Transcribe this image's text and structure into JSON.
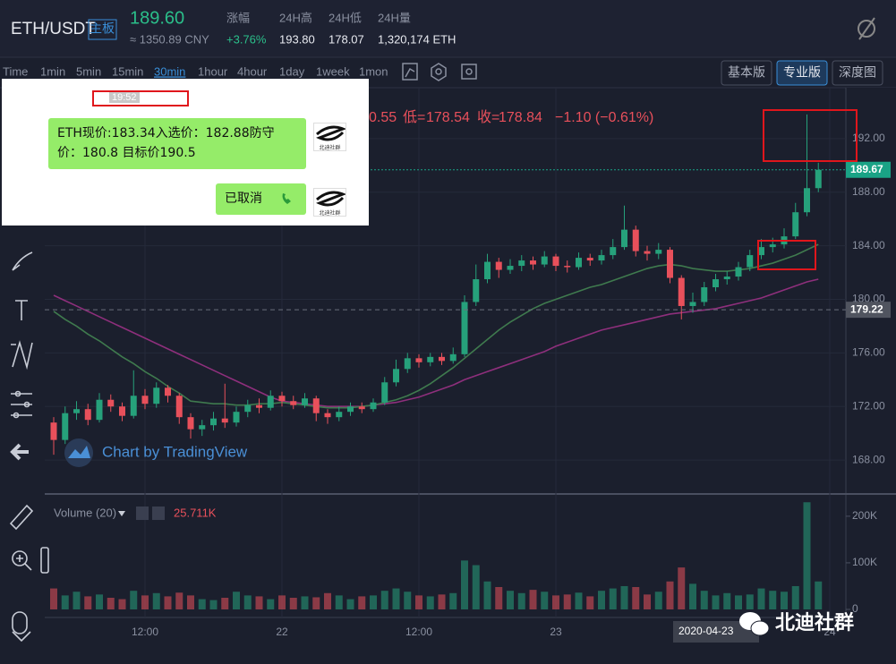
{
  "header": {
    "pair": "ETH/USDT",
    "board": "主板",
    "price": "189.60",
    "price_cny": "≈ 1350.89 CNY",
    "change_label": "涨幅",
    "change": "+3.76%",
    "high_label": "24H高",
    "high": "193.80",
    "low_label": "24H低",
    "low": "178.07",
    "volume_label": "24H量",
    "volume": "1,320,174 ETH"
  },
  "toolbar": {
    "intervals": [
      "Time",
      "1min",
      "5min",
      "15min",
      "30min",
      "1hour",
      "4hour",
      "1day",
      "1week",
      "1mon"
    ],
    "active": 4,
    "views": [
      "基本版",
      "专业版",
      "深度图"
    ],
    "active_view": 1
  },
  "legend_row": {
    "open_tail": "0.55",
    "low_label": "低=",
    "low": "178.54",
    "close_label": "收=",
    "close": "178.84",
    "change": "−1.10 (−0.61%)"
  },
  "chat": {
    "time": "19:52",
    "message": "ETH现价:183.34入选价：182.88防守价：180.8 目标价190.5",
    "logo": "北迪社群",
    "reply": "已取消"
  },
  "watermark": "Chart by TradingView",
  "date_tag": "2020-04-23",
  "brand": "北迪社群",
  "chart_data": {
    "type": "candlestick",
    "categories": [
      null,
      null,
      null,
      null,
      null,
      null,
      null,
      null,
      "12:00",
      null,
      null,
      null,
      null,
      null,
      null,
      null,
      null,
      null,
      null,
      null,
      "22",
      null,
      null,
      null,
      null,
      null,
      null,
      null,
      null,
      null,
      null,
      null,
      "12:00",
      null,
      null,
      null,
      null,
      null,
      null,
      null,
      null,
      null,
      null,
      null,
      "23",
      null,
      null,
      null,
      null,
      null,
      null,
      null,
      null,
      null,
      null,
      null,
      null,
      null,
      null,
      null,
      null,
      null,
      null,
      null,
      null,
      null,
      null,
      null,
      "24"
    ],
    "open": [
      170.8,
      169.5,
      171.5,
      171.8,
      171,
      172.5,
      172,
      171.3,
      172.8,
      172.2,
      173.4,
      172.8,
      171.2,
      170.3,
      170.6,
      171.1,
      170.8,
      171.6,
      172.1,
      171.9,
      172.8,
      172.4,
      172.1,
      172.6,
      171.5,
      171.2,
      171.6,
      172,
      171.8,
      172.3,
      173.8,
      174.8,
      175.6,
      175.3,
      175.7,
      175.4,
      175.9,
      179.8,
      181.5,
      182.8,
      182.2,
      182.5,
      182.9,
      182.6,
      183.2,
      182.5,
      182.4,
      183.1,
      182.9,
      183.3,
      183.9,
      185.2,
      183.6,
      183.4,
      183.7,
      181.6,
      179.5,
      179.8,
      180.9,
      181.5,
      181.7,
      182.4,
      183.3,
      183.9,
      184.1,
      184.7,
      186.5,
      188.3,
      null
    ],
    "high": [
      171.2,
      172,
      172.4,
      172.2,
      173,
      172.9,
      172.3,
      174.7,
      173.3,
      173.8,
      173.6,
      173,
      171.5,
      171,
      171.6,
      173.7,
      172,
      172.5,
      172.6,
      173.2,
      173.1,
      172.8,
      173,
      172.8,
      171.8,
      172,
      172.3,
      172.3,
      172.6,
      174.2,
      175.5,
      176,
      175.9,
      176,
      176,
      176.4,
      180.3,
      182.6,
      183.4,
      183.1,
      183,
      183.3,
      183.2,
      183.6,
      183.4,
      182.9,
      183.5,
      183.4,
      183.7,
      184.5,
      187,
      185.5,
      184,
      184.2,
      183.9,
      181.8,
      180.5,
      181.3,
      181.9,
      182.1,
      182.8,
      183.7,
      184.5,
      184.6,
      185.3,
      187.2,
      193.8,
      190.2,
      null
    ],
    "low": [
      168.4,
      169.2,
      171,
      170.6,
      170.8,
      171.6,
      170.9,
      171.1,
      171.8,
      171.9,
      172.3,
      170.7,
      169.6,
      169.8,
      170.2,
      170.4,
      170.5,
      171.2,
      171.5,
      171.7,
      172,
      171.8,
      171.9,
      170.9,
      170.7,
      170.9,
      171.3,
      171.5,
      171.6,
      172.1,
      173.5,
      174.5,
      174.9,
      175,
      175.1,
      175.2,
      175.7,
      179.5,
      181.2,
      181.6,
      181.9,
      182.1,
      182.2,
      182.4,
      182.1,
      182,
      182.2,
      182.5,
      182.6,
      183,
      183.7,
      183.2,
      182.9,
      183,
      181.2,
      178.5,
      179,
      179.5,
      180.6,
      181.1,
      181.4,
      182.1,
      183,
      183.5,
      183.8,
      184.5,
      186.2,
      188,
      null
    ],
    "close": [
      169.5,
      171.5,
      171.8,
      171,
      172.5,
      172,
      171.3,
      172.8,
      172.2,
      173.4,
      172.8,
      171.2,
      170.3,
      170.6,
      171.1,
      170.8,
      171.6,
      172.1,
      171.9,
      172.8,
      172.4,
      172.1,
      172.6,
      171.5,
      171.2,
      171.6,
      172,
      171.8,
      172.3,
      173.8,
      174.8,
      175.6,
      175.3,
      175.7,
      175.4,
      175.9,
      179.8,
      181.5,
      182.8,
      182.2,
      182.5,
      182.9,
      182.6,
      183.2,
      182.5,
      182.4,
      183.1,
      182.9,
      183.3,
      183.9,
      185.2,
      183.6,
      183.4,
      183.7,
      181.6,
      179.5,
      179.8,
      180.9,
      181.5,
      181.7,
      182.4,
      183.3,
      183.9,
      184.1,
      184.7,
      186.5,
      188.3,
      189.67,
      null
    ],
    "up_color": "#26a17b",
    "down_color": "#e8505b",
    "series": [
      {
        "color": "#8e2f7c",
        "values": [
          180.3,
          179.9,
          179.5,
          179.1,
          178.7,
          178.3,
          177.9,
          177.5,
          177.1,
          176.7,
          176.3,
          175.9,
          175.5,
          175.1,
          174.7,
          174.3,
          173.9,
          173.5,
          173.1,
          172.7,
          172.4,
          172.3,
          172.2,
          172.1,
          172.0,
          172.0,
          172.0,
          172.0,
          172.1,
          172.2,
          172.3,
          172.5,
          172.7,
          173.0,
          173.3,
          173.6,
          174.0,
          174.3,
          174.6,
          174.9,
          175.2,
          175.5,
          175.8,
          176.1,
          176.5,
          176.8,
          177.1,
          177.4,
          177.7,
          177.9,
          178.1,
          178.3,
          178.5,
          178.7,
          178.9,
          179.0,
          179.1,
          179.2,
          179.3,
          179.5,
          179.7,
          179.9,
          180.1,
          180.4,
          180.7,
          181.0,
          181.3,
          181.5,
          null
        ]
      },
      {
        "color": "#3f7a4e",
        "values": [
          179.1,
          178.5,
          178.0,
          177.4,
          176.9,
          176.3,
          175.7,
          175.2,
          174.6,
          174.1,
          173.5,
          173.0,
          172.4,
          172.3,
          172.2,
          172.2,
          172.1,
          172.1,
          172.2,
          172.2,
          172.3,
          172.2,
          172.1,
          172.0,
          171.9,
          171.9,
          171.9,
          172.0,
          172.1,
          172.3,
          172.5,
          172.8,
          173.2,
          173.7,
          174.3,
          174.9,
          175.6,
          176.3,
          177.0,
          177.7,
          178.3,
          178.8,
          179.3,
          179.7,
          180.0,
          180.3,
          180.6,
          180.9,
          181.1,
          181.4,
          181.7,
          182.0,
          182.3,
          182.5,
          182.6,
          182.5,
          182.3,
          182.2,
          182.1,
          182.1,
          182.2,
          182.3,
          182.5,
          182.7,
          183.0,
          183.3,
          183.7,
          184.1,
          null
        ]
      }
    ],
    "ylim": [
      165.6,
      195.8
    ],
    "yticks": [
      {
        "value": 168,
        "label": "168.00"
      },
      {
        "value": 172,
        "label": "172.00"
      },
      {
        "value": 176,
        "label": "176.00"
      },
      {
        "value": 180,
        "label": "180.00"
      },
      {
        "value": 184,
        "label": "184.00"
      },
      {
        "value": 188,
        "label": "188.00"
      },
      {
        "value": 192,
        "label": "192.00"
      }
    ],
    "last_price": {
      "value": 189.67,
      "label": "189.67"
    },
    "cursor_price": {
      "value": 179.22,
      "label": "179.22"
    },
    "volume": {
      "title": "Volume (20)",
      "values": [
        45,
        30,
        38,
        28,
        32,
        25,
        22,
        40,
        30,
        35,
        28,
        36,
        30,
        22,
        20,
        25,
        38,
        30,
        28,
        22,
        30,
        25,
        28,
        26,
        35,
        30,
        22,
        28,
        30,
        40,
        45,
        38,
        30,
        28,
        32,
        35,
        105,
        95,
        60,
        48,
        40,
        35,
        42,
        38,
        30,
        32,
        36,
        28,
        40,
        45,
        50,
        48,
        32,
        38,
        60,
        90,
        55,
        40,
        30,
        35,
        30,
        32,
        45,
        40,
        38,
        50,
        230,
        60,
        null
      ],
      "last": {
        "value": 25.711,
        "label": "25.711K"
      },
      "ylim": [
        0,
        242
      ],
      "yticks": [
        0,
        {
          "value": 100,
          "label": "100K"
        },
        {
          "value": 200,
          "label": "200K"
        }
      ]
    },
    "grid": true
  }
}
